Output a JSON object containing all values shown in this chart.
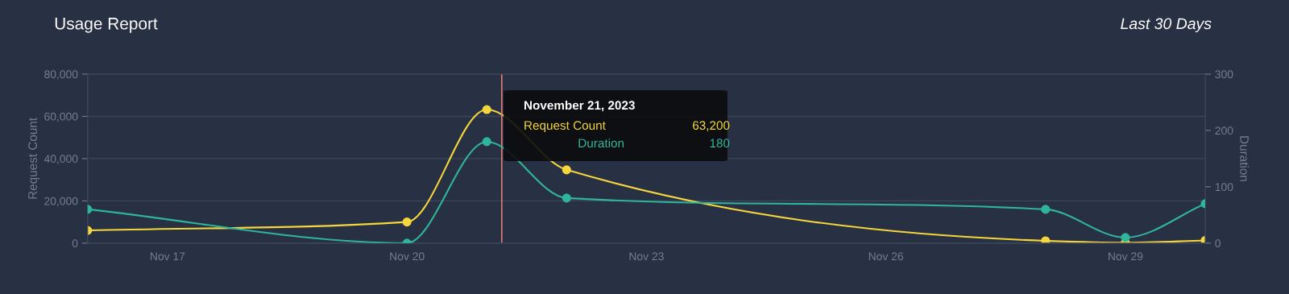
{
  "chart_data": {
    "type": "line",
    "title": "Usage Report",
    "subtitle": "Last 30 Days",
    "ylabel": "Request Count",
    "y2label": "Duration",
    "x": [
      "2023-11-16",
      "2023-11-20",
      "2023-11-21",
      "2023-11-22",
      "2023-11-28",
      "2023-11-29",
      "2023-11-30"
    ],
    "series": [
      {
        "name": "Request Count",
        "color": "#f5d63d",
        "values": [
          6000,
          10000,
          63200,
          34700,
          1100,
          200,
          1300
        ]
      },
      {
        "name": "Duration",
        "color": "#2fb59a",
        "axis": "y2",
        "values": [
          60,
          0,
          180,
          80,
          60,
          10,
          70
        ]
      }
    ],
    "xlim": [
      "2023-11-16",
      "2023-11-30"
    ],
    "xticks": [
      {
        "value": "2023-11-17",
        "label": "Nov 17"
      },
      {
        "value": "2023-11-20",
        "label": "Nov 20"
      },
      {
        "value": "2023-11-23",
        "label": "Nov 23"
      },
      {
        "value": "2023-11-26",
        "label": "Nov 26"
      },
      {
        "value": "2023-11-29",
        "label": "Nov 29"
      }
    ],
    "ylim": [
      0,
      80000
    ],
    "yticks": [
      {
        "value": 0,
        "label": "0"
      },
      {
        "value": 20000,
        "label": "20,000"
      },
      {
        "value": 40000,
        "label": "40,000"
      },
      {
        "value": 60000,
        "label": "60,000"
      },
      {
        "value": 80000,
        "label": "80,000"
      }
    ],
    "y2lim": [
      0,
      300
    ],
    "y2ticks": [
      0,
      100,
      200,
      300
    ],
    "ref_lines": [
      {
        "axis": "x",
        "value": "2023-11-21T04:30",
        "label": null,
        "color": "#e07b7b"
      }
    ],
    "annotations": [
      "November 21, 2023",
      "63,200",
      "180"
    ],
    "grid": "y",
    "legend": "top",
    "marker": "circle",
    "line_style": "solid"
  }
}
